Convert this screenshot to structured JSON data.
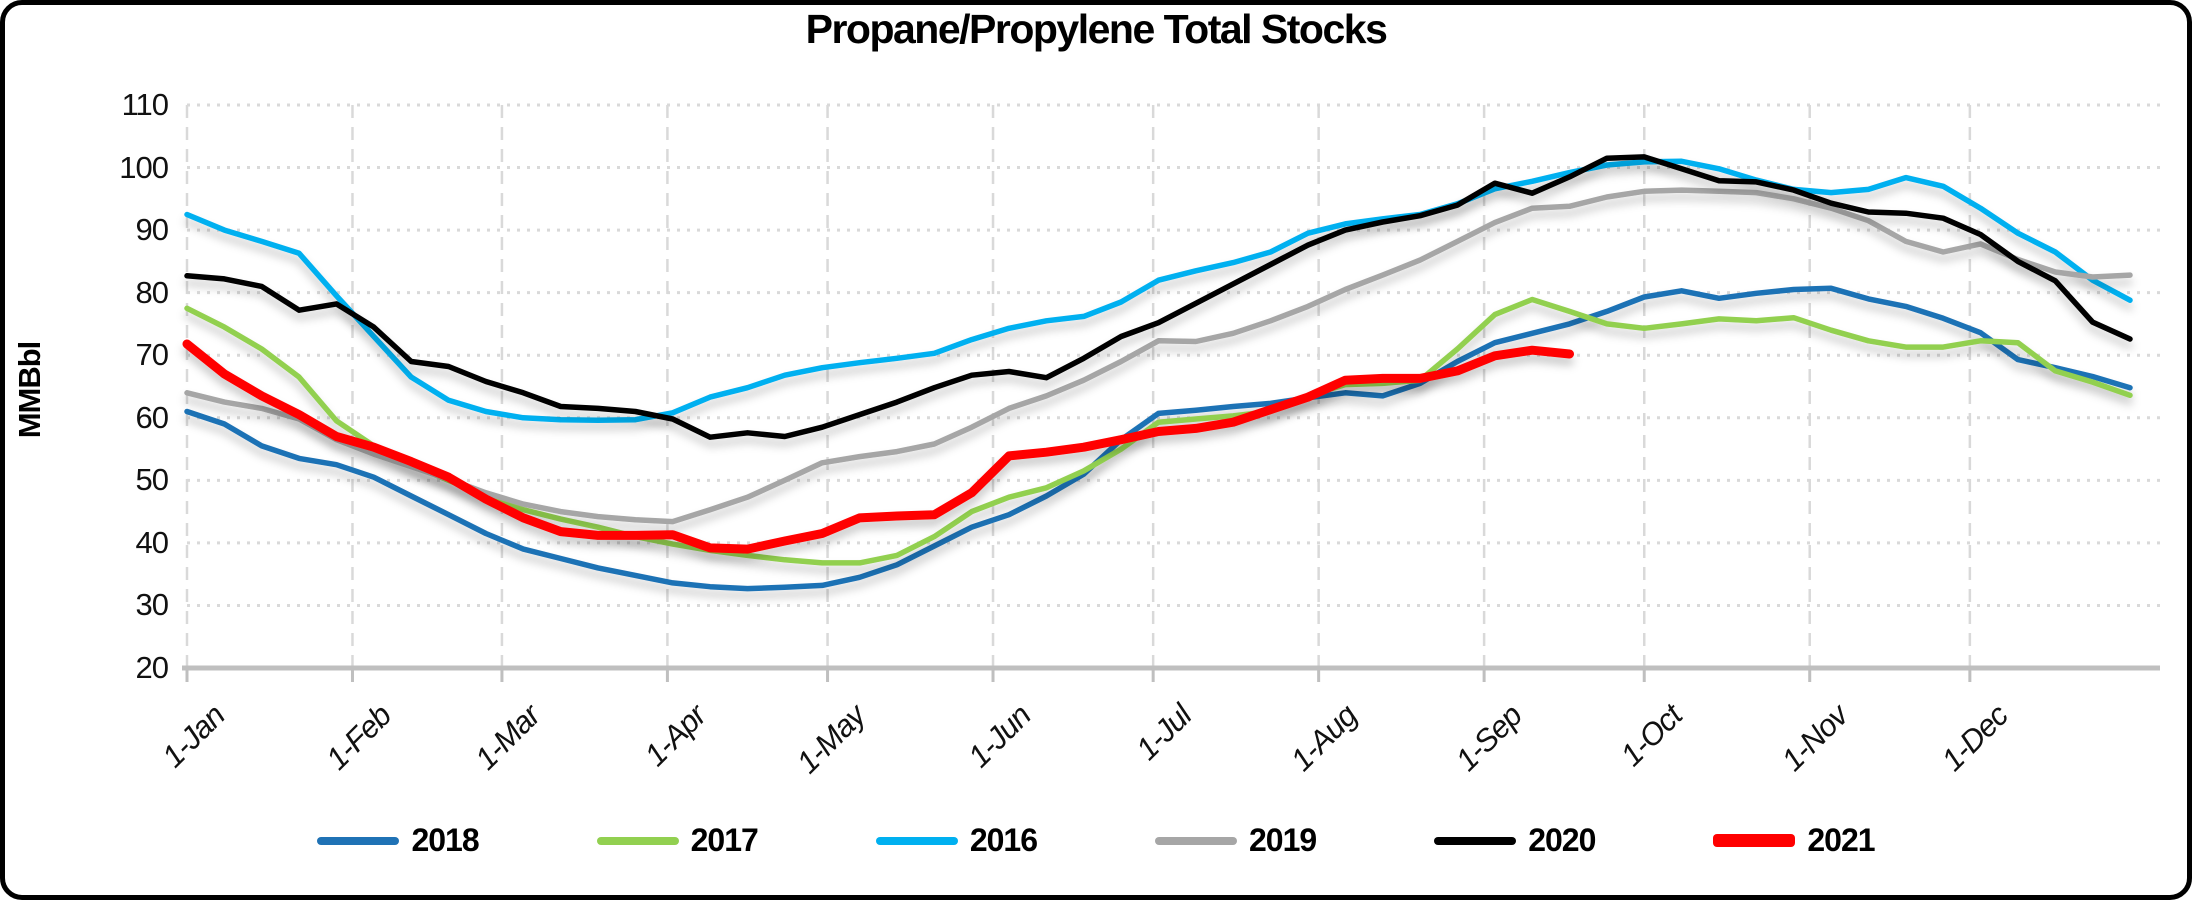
{
  "title": "Propane/Propylene Total Stocks",
  "y_axis": {
    "title": "MMBbl",
    "min": 20,
    "max": 110,
    "step": 10,
    "tick_labels": [
      "110",
      "100",
      "90",
      "80",
      "70",
      "60",
      "50",
      "40",
      "30",
      "20"
    ],
    "tick_values": [
      110,
      100,
      90,
      80,
      70,
      60,
      50,
      40,
      30,
      20
    ]
  },
  "x_axis": {
    "labels": [
      "1-Jan",
      "1-Feb",
      "1-Mar",
      "1-Apr",
      "1-May",
      "1-Jun",
      "1-Jul",
      "1-Aug",
      "1-Sep",
      "1-Oct",
      "1-Nov",
      "1-Dec"
    ],
    "month_day_offsets": [
      0,
      31,
      59,
      90,
      120,
      151,
      181,
      212,
      243,
      273,
      304,
      334
    ]
  },
  "legend": {
    "position": "bottom",
    "items": [
      "2018",
      "2017",
      "2016",
      "2019",
      "2020",
      "2021"
    ]
  },
  "style": {
    "grid_color": "#D9D9D9",
    "axis_color": "#BFBFBF",
    "background": "#FFFFFF"
  },
  "chart_data": {
    "type": "line",
    "title": "Propane/Propylene Total Stocks",
    "ylabel": "MMBbl",
    "ylim": [
      20,
      110
    ],
    "grid": true,
    "legend_position": "bottom",
    "x_unit": "weekly observations, index = weeks since 1-Jan (0..52)",
    "series": [
      {
        "name": "2018",
        "color": "#1F72B5",
        "stroke_width": 5.5,
        "values": [
          61.0,
          59.0,
          55.5,
          53.5,
          52.5,
          50.5,
          47.5,
          44.5,
          41.5,
          39.0,
          37.5,
          36.0,
          34.8,
          33.6,
          33.0,
          32.7,
          32.9,
          33.2,
          34.5,
          36.5,
          39.5,
          42.5,
          44.5,
          47.5,
          51.0,
          56.5,
          60.7,
          61.2,
          61.8,
          62.3,
          63.2,
          64.0,
          63.5,
          65.5,
          69.0,
          72.0,
          73.5,
          75.0,
          77.0,
          79.3,
          80.3,
          79.1,
          79.9,
          80.5,
          80.7,
          79.0,
          77.8,
          75.9,
          73.6,
          69.3,
          68.0,
          66.6,
          64.8
        ]
      },
      {
        "name": "2017",
        "color": "#92D050",
        "stroke_width": 5.5,
        "values": [
          77.5,
          74.5,
          71.0,
          66.5,
          59.5,
          55.5,
          52.5,
          50.0,
          47.5,
          45.3,
          43.8,
          42.5,
          41.0,
          39.8,
          38.8,
          38.0,
          37.3,
          36.8,
          36.8,
          38.0,
          41.0,
          45.0,
          47.3,
          48.8,
          51.5,
          55.0,
          59.3,
          59.8,
          60.3,
          61.0,
          63.5,
          65.3,
          65.5,
          66.0,
          71.0,
          76.5,
          78.9,
          77.0,
          75.0,
          74.3,
          75.0,
          75.8,
          75.5,
          76.0,
          74.0,
          72.3,
          71.3,
          71.3,
          72.3,
          72.0,
          67.5,
          65.7,
          63.6
        ]
      },
      {
        "name": "2016",
        "color": "#00B0F0",
        "stroke_width": 5.5,
        "values": [
          92.5,
          90.0,
          88.2,
          86.3,
          79.5,
          73.0,
          66.5,
          62.8,
          61.0,
          60.0,
          59.7,
          59.6,
          59.7,
          60.8,
          63.3,
          64.8,
          66.8,
          68.0,
          68.8,
          69.5,
          70.3,
          72.5,
          74.3,
          75.5,
          76.2,
          78.5,
          82.0,
          83.5,
          84.8,
          86.5,
          89.5,
          91.0,
          91.8,
          92.5,
          94.2,
          96.6,
          97.8,
          99.2,
          100.4,
          100.9,
          101.0,
          99.8,
          98.0,
          96.5,
          96.0,
          96.5,
          98.4,
          97.0,
          93.5,
          89.5,
          86.5,
          82.0,
          78.8
        ]
      },
      {
        "name": "2019",
        "color": "#A6A6A6",
        "stroke_width": 5.5,
        "values": [
          64.0,
          62.5,
          61.5,
          59.8,
          56.5,
          54.2,
          52.2,
          50.2,
          48.0,
          46.2,
          45.0,
          44.2,
          43.7,
          43.4,
          45.3,
          47.3,
          50.0,
          52.8,
          53.8,
          54.6,
          55.8,
          58.5,
          61.5,
          63.5,
          66.0,
          69.0,
          72.3,
          72.2,
          73.5,
          75.5,
          77.8,
          80.5,
          82.8,
          85.2,
          88.2,
          91.2,
          93.5,
          93.8,
          95.3,
          96.2,
          96.4,
          96.2,
          96.0,
          95.0,
          93.5,
          91.5,
          88.2,
          86.5,
          87.8,
          85.3,
          83.3,
          82.5,
          82.8
        ]
      },
      {
        "name": "2020",
        "color": "#000000",
        "stroke_width": 5.5,
        "values": [
          82.7,
          82.2,
          81.0,
          77.2,
          78.2,
          74.5,
          69.0,
          68.2,
          65.8,
          64.0,
          61.8,
          61.5,
          61.0,
          59.8,
          56.9,
          57.6,
          57.0,
          58.5,
          60.5,
          62.5,
          64.8,
          66.8,
          67.4,
          66.4,
          69.5,
          73.0,
          75.2,
          78.3,
          81.4,
          84.5,
          87.6,
          90.0,
          91.3,
          92.3,
          94.0,
          97.5,
          95.9,
          98.5,
          101.5,
          101.7,
          99.8,
          97.9,
          97.7,
          96.4,
          94.3,
          92.9,
          92.7,
          91.9,
          89.3,
          85.0,
          81.9,
          75.3,
          72.6
        ]
      },
      {
        "name": "2021",
        "color": "#FF0000",
        "stroke_width": 9,
        "values": [
          71.8,
          67.0,
          63.5,
          60.5,
          57.0,
          55.3,
          53.0,
          50.5,
          47.0,
          44.0,
          41.8,
          41.2,
          41.2,
          41.3,
          39.2,
          39.0,
          40.3,
          41.5,
          44.0,
          44.3,
          44.5,
          48.0,
          53.9,
          54.5,
          55.3,
          56.5,
          57.8,
          58.3,
          59.3,
          61.3,
          63.3,
          66.0,
          66.3,
          66.3,
          67.5,
          69.9,
          70.8,
          70.2
        ]
      }
    ]
  }
}
